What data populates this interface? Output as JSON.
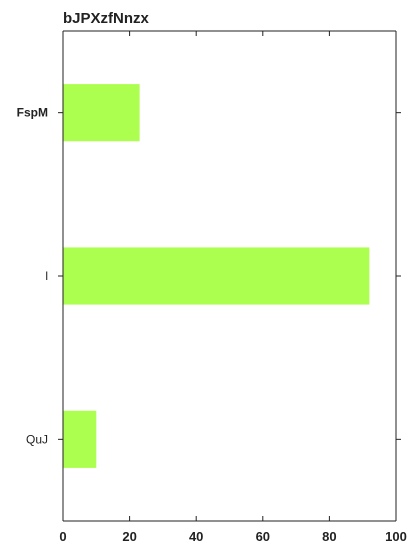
{
  "chart_data": {
    "type": "bar",
    "orientation": "horizontal",
    "title": "bJPXzfNnzx",
    "xlabel": "",
    "ylabel": "",
    "categories": [
      "FspM",
      "l",
      "QuJ"
    ],
    "category_bold": [
      true,
      false,
      false
    ],
    "values": [
      23,
      92,
      10
    ],
    "xlim": [
      0,
      100
    ],
    "xticks": [
      0,
      20,
      40,
      60,
      80,
      100
    ],
    "bar_color": "#adff4f",
    "grid": false
  }
}
